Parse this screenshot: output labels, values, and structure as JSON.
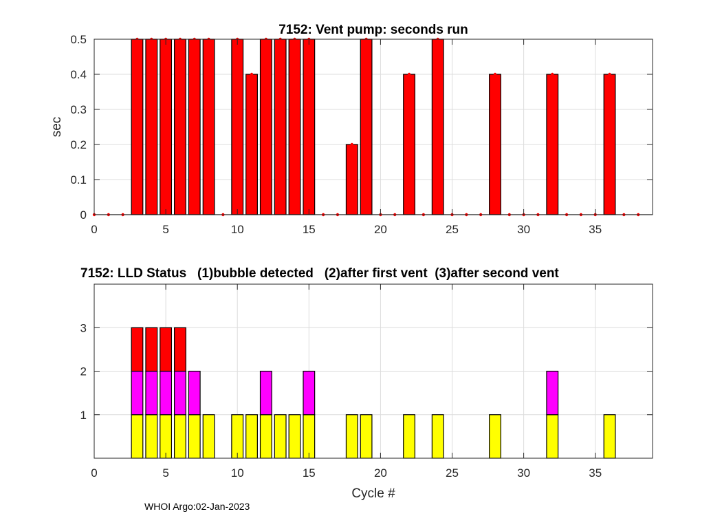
{
  "chart_data": [
    {
      "type": "bar",
      "title": "7152: Vent pump: seconds run",
      "xlabel": "",
      "ylabel": "sec",
      "xlim": [
        0,
        39
      ],
      "ylim": [
        0,
        0.5
      ],
      "xticks": [
        0,
        5,
        10,
        15,
        20,
        25,
        30,
        35
      ],
      "yticks": [
        0,
        0.1,
        0.2,
        0.3,
        0.4,
        0.5
      ],
      "ytick_labels": [
        "0",
        "0.1",
        "0.2",
        "0.3",
        "0.4",
        "0.5"
      ],
      "grid": true,
      "bar_color": "#ff0000",
      "marker_color": "#ff0000",
      "x": [
        0,
        1,
        2,
        3,
        4,
        5,
        6,
        7,
        8,
        9,
        10,
        11,
        12,
        13,
        14,
        15,
        16,
        17,
        18,
        19,
        20,
        21,
        22,
        23,
        24,
        25,
        26,
        27,
        28,
        29,
        30,
        31,
        32,
        33,
        34,
        35,
        36,
        37,
        38
      ],
      "values": [
        0,
        0,
        0,
        0.5,
        0.5,
        0.5,
        0.5,
        0.5,
        0.5,
        0,
        0.5,
        0.4,
        0.5,
        0.5,
        0.5,
        0.5,
        0,
        0,
        0.2,
        0.5,
        0,
        0,
        0.4,
        0,
        0.5,
        0,
        0,
        0,
        0.4,
        0,
        0,
        0,
        0.4,
        0,
        0,
        0,
        0.4,
        0,
        0
      ]
    },
    {
      "type": "bar",
      "stacked": true,
      "title": "7152: LLD Status   (1)bubble detected   (2)after first vent  (3)after second vent",
      "xlabel": "Cycle #",
      "ylabel": "",
      "xlim": [
        0,
        39
      ],
      "ylim": [
        0,
        4
      ],
      "xticks": [
        0,
        5,
        10,
        15,
        20,
        25,
        30,
        35
      ],
      "yticks": [
        1,
        2,
        3
      ],
      "grid": true,
      "x": [
        3,
        4,
        5,
        6,
        7,
        8,
        10,
        11,
        12,
        13,
        14,
        15,
        18,
        19,
        22,
        24,
        28,
        32,
        36
      ],
      "series": [
        {
          "name": "(1)bubble detected",
          "color": "#ffff00",
          "values": [
            1,
            1,
            1,
            1,
            1,
            1,
            1,
            1,
            1,
            1,
            1,
            1,
            1,
            1,
            1,
            1,
            1,
            1,
            1
          ]
        },
        {
          "name": "(2)after first vent",
          "color": "#ff00ff",
          "values": [
            1,
            1,
            1,
            1,
            1,
            0,
            0,
            0,
            1,
            0,
            0,
            1,
            0,
            0,
            0,
            0,
            0,
            1,
            0
          ]
        },
        {
          "name": "(3)after second vent",
          "color": "#ff0000",
          "values": [
            1,
            1,
            1,
            1,
            0,
            0,
            0,
            0,
            0,
            0,
            0,
            0,
            0,
            0,
            0,
            0,
            0,
            0,
            0
          ]
        }
      ]
    }
  ],
  "footer": "WHOI Argo:02-Jan-2023"
}
